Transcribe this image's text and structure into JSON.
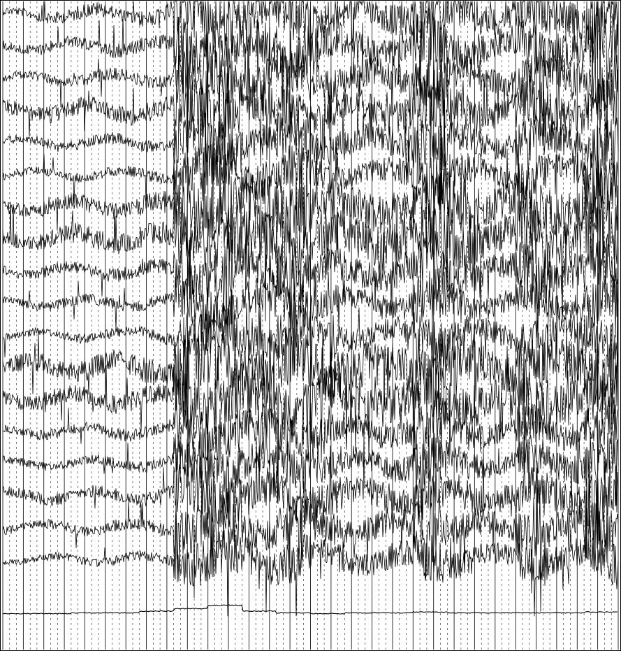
{
  "chart_data": {
    "type": "line",
    "title": "",
    "xlabel": "",
    "ylabel": "",
    "grid": true,
    "legend": "none",
    "x_range": [
      0,
      30
    ],
    "channel_count": 18,
    "series": [
      {
        "values": [
          0.2,
          0.3,
          0.35,
          0.3,
          0.4,
          1.0,
          1.0,
          0.8,
          0.95,
          0.7,
          0.6,
          0.65,
          0.9,
          0.7,
          0.6,
          0.9,
          0.7,
          1.0
        ]
      },
      {
        "values": [
          0.25,
          0.3,
          0.3,
          0.35,
          0.35,
          0.95,
          0.9,
          0.8,
          0.9,
          0.7,
          0.6,
          0.65,
          0.95,
          0.7,
          0.6,
          0.85,
          0.7,
          1.0
        ]
      },
      {
        "values": [
          0.2,
          0.25,
          0.3,
          0.3,
          0.3,
          0.9,
          0.85,
          0.75,
          0.85,
          0.7,
          0.6,
          0.6,
          0.9,
          0.65,
          0.55,
          0.8,
          0.7,
          0.95
        ]
      },
      {
        "values": [
          0.35,
          0.4,
          0.4,
          0.45,
          0.45,
          1.0,
          0.95,
          0.8,
          0.95,
          0.75,
          0.65,
          0.7,
          1.0,
          0.75,
          0.6,
          0.9,
          0.75,
          1.0
        ]
      },
      {
        "values": [
          0.2,
          0.25,
          0.25,
          0.3,
          0.3,
          0.85,
          0.8,
          0.7,
          0.85,
          0.65,
          0.55,
          0.6,
          0.9,
          0.6,
          0.55,
          0.8,
          0.65,
          0.9
        ]
      },
      {
        "values": [
          0.2,
          0.2,
          0.25,
          0.25,
          0.3,
          0.85,
          0.8,
          0.7,
          0.8,
          0.6,
          0.5,
          0.55,
          0.9,
          0.6,
          0.5,
          0.75,
          0.6,
          0.9
        ]
      },
      {
        "values": [
          0.3,
          0.35,
          0.4,
          0.4,
          0.45,
          1.0,
          1.0,
          0.85,
          1.0,
          0.8,
          0.7,
          0.75,
          1.0,
          0.8,
          0.65,
          0.95,
          0.8,
          1.0
        ]
      },
      {
        "values": [
          0.35,
          0.4,
          0.45,
          0.45,
          0.5,
          1.0,
          1.0,
          0.9,
          1.0,
          0.85,
          0.75,
          0.8,
          1.0,
          0.85,
          0.7,
          1.0,
          0.85,
          1.0
        ]
      },
      {
        "values": [
          0.25,
          0.3,
          0.3,
          0.35,
          0.35,
          0.9,
          0.9,
          0.75,
          0.9,
          0.7,
          0.6,
          0.65,
          0.95,
          0.7,
          0.6,
          0.85,
          0.7,
          0.95
        ]
      },
      {
        "values": [
          0.2,
          0.25,
          0.25,
          0.3,
          0.3,
          0.85,
          0.8,
          0.7,
          0.8,
          0.6,
          0.5,
          0.55,
          0.9,
          0.6,
          0.5,
          0.75,
          0.6,
          0.9
        ]
      },
      {
        "values": [
          0.2,
          0.2,
          0.25,
          0.25,
          0.3,
          0.8,
          0.8,
          0.65,
          0.8,
          0.6,
          0.5,
          0.55,
          0.85,
          0.6,
          0.5,
          0.75,
          0.6,
          0.85
        ]
      },
      {
        "values": [
          0.4,
          0.45,
          0.5,
          0.5,
          0.55,
          1.0,
          1.0,
          0.9,
          1.0,
          0.85,
          0.75,
          0.8,
          1.0,
          0.85,
          0.7,
          1.0,
          0.85,
          1.0
        ]
      },
      {
        "values": [
          0.35,
          0.4,
          0.4,
          0.45,
          0.45,
          1.0,
          0.95,
          0.85,
          0.95,
          0.8,
          0.7,
          0.75,
          1.0,
          0.8,
          0.65,
          0.95,
          0.8,
          1.0
        ]
      },
      {
        "values": [
          0.2,
          0.25,
          0.25,
          0.3,
          0.3,
          0.85,
          0.8,
          0.7,
          0.8,
          0.6,
          0.5,
          0.55,
          0.9,
          0.6,
          0.5,
          0.75,
          0.6,
          0.9
        ]
      },
      {
        "values": [
          0.2,
          0.2,
          0.25,
          0.25,
          0.3,
          0.8,
          0.8,
          0.65,
          0.8,
          0.6,
          0.5,
          0.55,
          0.85,
          0.6,
          0.5,
          0.75,
          0.6,
          0.85
        ]
      },
      {
        "values": [
          0.25,
          0.3,
          0.3,
          0.35,
          0.35,
          0.9,
          0.85,
          0.75,
          0.85,
          0.7,
          0.6,
          0.65,
          0.9,
          0.65,
          0.55,
          0.8,
          0.7,
          0.95
        ]
      },
      {
        "values": [
          0.2,
          0.25,
          0.25,
          0.3,
          0.3,
          0.85,
          0.85,
          0.7,
          0.85,
          0.65,
          0.55,
          0.6,
          0.9,
          0.6,
          0.55,
          0.8,
          0.65,
          0.9
        ]
      },
      {
        "values": [
          0.15,
          0.2,
          0.2,
          0.25,
          0.25,
          0.8,
          0.8,
          0.7,
          0.8,
          0.6,
          0.5,
          0.55,
          0.85,
          0.6,
          0.5,
          0.7,
          0.6,
          0.85
        ]
      }
    ],
    "ekg": {
      "values": [
        0.02,
        0.02,
        0.03,
        0.03,
        0.05,
        0.08,
        0.12,
        0.05,
        0.03,
        0.02,
        0.03,
        0.03,
        0.04,
        0.03,
        0.03,
        0.03,
        0.03,
        0.04
      ]
    },
    "colors": {
      "trace": "#000000",
      "background": "#ffffff",
      "grid": "#000000"
    }
  }
}
